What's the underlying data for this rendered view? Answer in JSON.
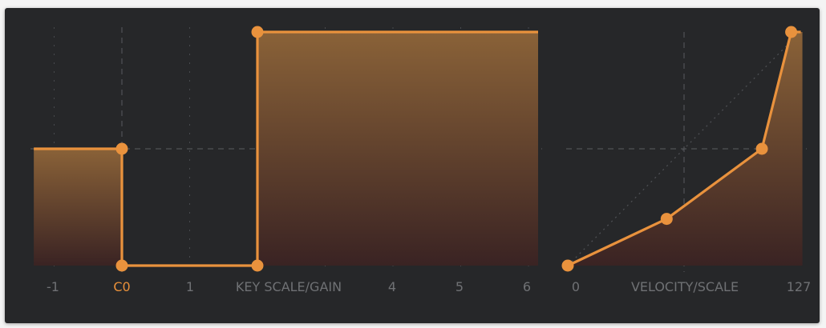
{
  "colors": {
    "panel_bg": "#262729",
    "curve": "#e9923d",
    "fill_top": "#8a6238",
    "fill_bottom": "#3a2323",
    "grid": "#505256",
    "label": "#6f7174",
    "label_active": "#e8903a"
  },
  "key_scale": {
    "title": "KEY SCALE/GAIN",
    "x_ticks": [
      "-1",
      "C0",
      "1",
      "4",
      "5",
      "6"
    ],
    "active_tick": "C0",
    "gain_levels": [
      {
        "from_octave": -1.3,
        "to_octave": 0,
        "gain": 0.5
      },
      {
        "from_octave": 0,
        "to_octave": 2.0,
        "gain": 0.0
      },
      {
        "from_octave": 2.0,
        "to_octave": 6.2,
        "gain": 1.0
      }
    ],
    "breakpoints": [
      {
        "octave": 0,
        "gain": 0.5
      },
      {
        "octave": 0,
        "gain": 0.0
      },
      {
        "octave": 2.0,
        "gain": 0.0
      },
      {
        "octave": 2.0,
        "gain": 1.0
      }
    ]
  },
  "velocity": {
    "title": "VELOCITY/SCALE",
    "x_ticks": [
      "0",
      "127"
    ],
    "curve_points": [
      {
        "velocity": 0,
        "scale": 0.0
      },
      {
        "velocity": 54,
        "scale": 0.2
      },
      {
        "velocity": 106,
        "scale": 0.5
      },
      {
        "velocity": 122,
        "scale": 1.0
      }
    ]
  }
}
